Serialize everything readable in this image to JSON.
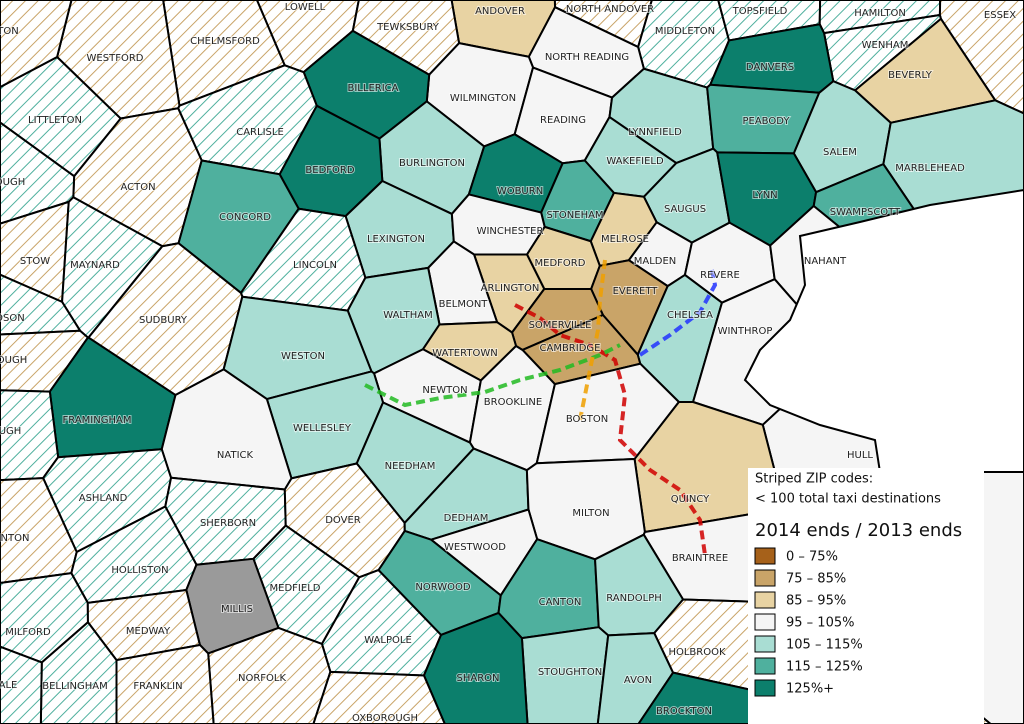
{
  "map": {
    "no_data_color": "#9a9a9a",
    "towns": [
      {
        "name": "ANDOVER",
        "class": 2,
        "striped": false
      },
      {
        "name": "NORTH ANDOVER",
        "class": 1,
        "striped": true
      },
      {
        "name": "MIDDLETON",
        "class": 5,
        "striped": true
      },
      {
        "name": "TOPSFIELD",
        "class": 5,
        "striped": true
      },
      {
        "name": "HAMILTON",
        "class": 5,
        "striped": true
      },
      {
        "name": "ESSEX",
        "class": 1,
        "striped": true
      },
      {
        "name": "WENHAM",
        "class": 5,
        "striped": true
      },
      {
        "name": "DANVERS",
        "class": 6,
        "striped": false
      },
      {
        "name": "BEVERLY",
        "class": 2,
        "striped": false
      },
      {
        "name": "LOWELL",
        "class": 1,
        "striped": true
      },
      {
        "name": "TEWKSBURY",
        "class": 1,
        "striped": true
      },
      {
        "name": "CHELMSFORD",
        "class": 1,
        "striped": true
      },
      {
        "name": "WESTFORD",
        "class": 1,
        "striped": true
      },
      {
        "name": "NORTH READING",
        "class": 3,
        "striped": false
      },
      {
        "name": "WILMINGTON",
        "class": 3,
        "striped": false
      },
      {
        "name": "BILLERICA",
        "class": 6,
        "striped": false
      },
      {
        "name": "LITTLETON",
        "class": 5,
        "striped": true
      },
      {
        "name": "CARLISLE",
        "class": 5,
        "striped": true
      },
      {
        "name": "READING",
        "class": 3,
        "striped": false
      },
      {
        "name": "LYNNFIELD",
        "class": 4,
        "striped": false
      },
      {
        "name": "PEABODY",
        "class": 5,
        "striped": false
      },
      {
        "name": "SALEM",
        "class": 4,
        "striped": false
      },
      {
        "name": "MARBLEHEAD",
        "class": 4,
        "striped": false
      },
      {
        "name": "BURLINGTON",
        "class": 4,
        "striped": false
      },
      {
        "name": "BEDFORD",
        "class": 6,
        "striped": false
      },
      {
        "name": "WOBURN",
        "class": 6,
        "striped": false
      },
      {
        "name": "WAKEFIELD",
        "class": 4,
        "striped": false
      },
      {
        "name": "ACTON",
        "class": 1,
        "striped": true
      },
      {
        "name": "OUGH",
        "class": 5,
        "striped": true
      },
      {
        "name": "CONCORD",
        "class": 5,
        "striped": false
      },
      {
        "name": "STONEHAM",
        "class": 5,
        "striped": false
      },
      {
        "name": "SAUGUS",
        "class": 4,
        "striped": false
      },
      {
        "name": "LYNN",
        "class": 6,
        "striped": false
      },
      {
        "name": "SWAMPSCOTT",
        "class": 5,
        "striped": false
      },
      {
        "name": "LEXINGTON",
        "class": 4,
        "striped": false
      },
      {
        "name": "WINCHESTER",
        "class": 3,
        "striped": false
      },
      {
        "name": "MELROSE",
        "class": 2,
        "striped": false
      },
      {
        "name": "MALDEN",
        "class": 3,
        "striped": false
      },
      {
        "name": "REVERE",
        "class": 3,
        "striped": false
      },
      {
        "name": "NAHANT",
        "class": 3,
        "striped": false
      },
      {
        "name": "STOW",
        "class": 1,
        "striped": true
      },
      {
        "name": "MAYNARD",
        "class": 5,
        "striped": true
      },
      {
        "name": "LINCOLN",
        "class": 5,
        "striped": true
      },
      {
        "name": "MEDFORD",
        "class": 2,
        "striped": false
      },
      {
        "name": "ARLINGTON",
        "class": 2,
        "striped": false
      },
      {
        "name": "EVERETT",
        "class": 1,
        "striped": false
      },
      {
        "name": "SUDBURY",
        "class": 1,
        "striped": true
      },
      {
        "name": "BELMONT",
        "class": 3,
        "striped": false
      },
      {
        "name": "WALTHAM",
        "class": 4,
        "striped": false
      },
      {
        "name": "SOMERVILLE",
        "class": 1,
        "striped": false
      },
      {
        "name": "CHELSEA",
        "class": 4,
        "striped": false
      },
      {
        "name": "WINTHROP",
        "class": 3,
        "striped": false
      },
      {
        "name": "DSON",
        "class": 5,
        "striped": true
      },
      {
        "name": "CAMBRIDGE",
        "class": 1,
        "striped": false
      },
      {
        "name": "WESTON",
        "class": 4,
        "striped": false
      },
      {
        "name": "WATERTOWN",
        "class": 2,
        "striped": false
      },
      {
        "name": "NEWTON",
        "class": 3,
        "striped": false
      },
      {
        "name": "OUGH",
        "class": 1,
        "striped": true
      },
      {
        "name": "BROOKLINE",
        "class": 3,
        "striped": false
      },
      {
        "name": "BOSTON",
        "class": 3,
        "striped": false
      },
      {
        "name": "FRAMINGHAM",
        "class": 6,
        "striped": false
      },
      {
        "name": "WELLESLEY",
        "class": 4,
        "striped": false
      },
      {
        "name": "NATICK",
        "class": 3,
        "striped": false
      },
      {
        "name": "NEEDHAM",
        "class": 4,
        "striped": false
      },
      {
        "name": "HULL",
        "class": 3,
        "striped": false
      },
      {
        "name": "UGH",
        "class": 5,
        "striped": true
      },
      {
        "name": "ASHLAND",
        "class": 5,
        "striped": true
      },
      {
        "name": "QUINCY",
        "class": 2,
        "striped": false
      },
      {
        "name": "NTON",
        "class": 1,
        "striped": true
      },
      {
        "name": "SHERBORN",
        "class": 5,
        "striped": true
      },
      {
        "name": "DOVER",
        "class": 1,
        "striped": true
      },
      {
        "name": "DEDHAM",
        "class": 4,
        "striped": false
      },
      {
        "name": "MILTON",
        "class": 3,
        "striped": false
      },
      {
        "name": "WESTWOOD",
        "class": 3,
        "striped": false
      },
      {
        "name": "BRAINTREE",
        "class": 3,
        "striped": false
      },
      {
        "name": "HOLLISTON",
        "class": 5,
        "striped": true
      },
      {
        "name": "MEDFIELD",
        "class": 5,
        "striped": true
      },
      {
        "name": "NORWOOD",
        "class": 5,
        "striped": false
      },
      {
        "name": "CANTON",
        "class": 5,
        "striped": false
      },
      {
        "name": "RANDOLPH",
        "class": 4,
        "striped": false
      },
      {
        "name": "MILLIS",
        "class": null,
        "striped": false
      },
      {
        "name": "MILFORD",
        "class": 5,
        "striped": true
      },
      {
        "name": "MEDWAY",
        "class": 1,
        "striped": true
      },
      {
        "name": "WALPOLE",
        "class": 5,
        "striped": true
      },
      {
        "name": "HOLBROOK",
        "class": 1,
        "striped": true
      },
      {
        "name": "NORFOLK",
        "class": 1,
        "striped": true
      },
      {
        "name": "STOUGHTON",
        "class": 4,
        "striped": false
      },
      {
        "name": "AVON",
        "class": 4,
        "striped": false
      },
      {
        "name": "SHARON",
        "class": 6,
        "striped": false
      },
      {
        "name": "BELLINGHAM",
        "class": 5,
        "striped": true
      },
      {
        "name": "FRANKLIN",
        "class": 1,
        "striped": true
      },
      {
        "name": "BROCKTON",
        "class": 6,
        "striped": false
      },
      {
        "name": "OXBOROUGH",
        "class": 1,
        "striped": true
      },
      {
        "name": "ALE",
        "class": 5,
        "striped": true
      },
      {
        "name": "TON",
        "class": 1,
        "striped": true
      }
    ],
    "legend": {
      "note_title": "Striped ZIP codes:",
      "note": "< 100 total taxi destinations",
      "title": "2014 ends / 2013 ends",
      "items": [
        {
          "label": "0 – 75%",
          "color": "#a6611a"
        },
        {
          "label": "75 – 85%",
          "color": "#c9a468"
        },
        {
          "label": "85 – 95%",
          "color": "#e8d3a3"
        },
        {
          "label": "95 – 105%",
          "color": "#f5f5f5"
        },
        {
          "label": "105 – 115%",
          "color": "#a9ddd3"
        },
        {
          "label": "115 – 125%",
          "color": "#4fb09e"
        },
        {
          "label": "125%+",
          "color": "#0c7f6c"
        }
      ]
    }
  }
}
